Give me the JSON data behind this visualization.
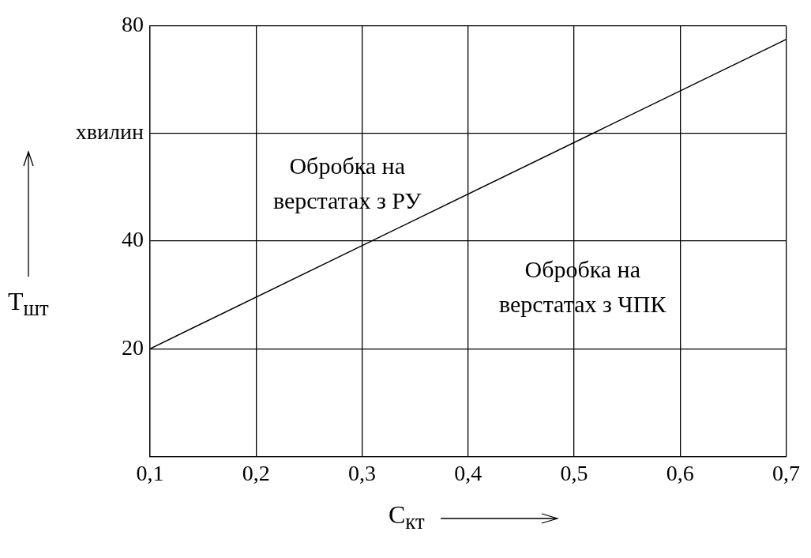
{
  "chart_data": {
    "type": "line",
    "xlabel": "C$_{кт}$",
    "ylabel": "T$_{шт}$",
    "annotations": [
      "Обробка на\nверстатах з РУ",
      "Обробка на\nверстатах з ЧПК"
    ],
    "series": [
      {
        "color": "#000000",
        "x": [
          0.1,
          0.7
        ],
        "values": [
          20,
          77.5
        ]
      }
    ],
    "xlim": [
      0.1,
      0.7
    ],
    "xticks": [
      {
        "value": 0.1,
        "label": "0,1"
      },
      {
        "value": 0.2,
        "label": "0,2"
      },
      {
        "value": 0.3,
        "label": "0,3"
      },
      {
        "value": 0.4,
        "label": "0,4"
      },
      {
        "value": 0.5,
        "label": "0,5"
      },
      {
        "value": 0.6,
        "label": "0,6"
      },
      {
        "value": 0.7,
        "label": "0,7"
      }
    ],
    "ylim": [
      0,
      80
    ],
    "yticks": [
      {
        "value": 0,
        "label": null
      },
      20,
      40,
      {
        "value": 60,
        "label": "хвилин"
      },
      80
    ],
    "grid": true,
    "legend": false,
    "marker": "none",
    "line_style": "solid"
  }
}
